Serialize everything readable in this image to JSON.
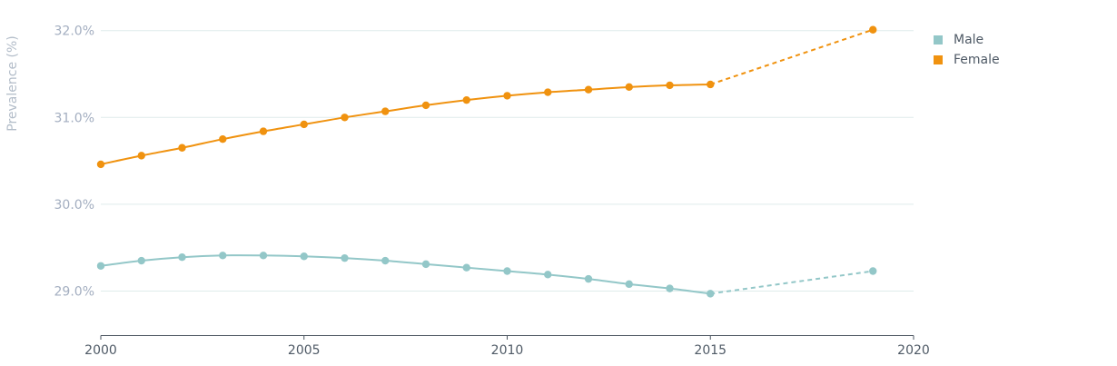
{
  "chart_data": {
    "type": "line",
    "title": "",
    "xlabel": "",
    "ylabel": "Prevalence (%)",
    "xlim": [
      2000,
      2020
    ],
    "ylim": [
      28.5,
      32.2
    ],
    "x_ticks": [
      "2000",
      "2005",
      "2010",
      "2015",
      "2020"
    ],
    "y_ticks": [
      {
        "value": 29.0,
        "label": "29.0%"
      },
      {
        "value": 30.0,
        "label": "30.0%"
      },
      {
        "value": 31.0,
        "label": "31.0%"
      },
      {
        "value": 32.0,
        "label": "32.0%"
      }
    ],
    "grid": true,
    "legend_position": "right",
    "series": [
      {
        "name": "Male",
        "color": "#93c7c8",
        "x": [
          2000,
          2001,
          2002,
          2003,
          2004,
          2005,
          2006,
          2007,
          2008,
          2009,
          2010,
          2011,
          2012,
          2013,
          2014,
          2015
        ],
        "values": [
          29.29,
          29.35,
          29.39,
          29.41,
          29.41,
          29.4,
          29.38,
          29.35,
          29.31,
          29.27,
          29.23,
          29.19,
          29.14,
          29.08,
          29.03,
          28.97
        ],
        "projection": {
          "x": [
            2015,
            2019
          ],
          "values": [
            28.97,
            29.23
          ]
        }
      },
      {
        "name": "Female",
        "color": "#f0920f",
        "x": [
          2000,
          2001,
          2002,
          2003,
          2004,
          2005,
          2006,
          2007,
          2008,
          2009,
          2010,
          2011,
          2012,
          2013,
          2014,
          2015
        ],
        "values": [
          30.46,
          30.56,
          30.65,
          30.75,
          30.84,
          30.92,
          31.0,
          31.07,
          31.14,
          31.2,
          31.25,
          31.29,
          31.32,
          31.35,
          31.37,
          31.38
        ],
        "projection": {
          "x": [
            2015,
            2019
          ],
          "values": [
            31.38,
            32.01
          ]
        }
      }
    ]
  }
}
